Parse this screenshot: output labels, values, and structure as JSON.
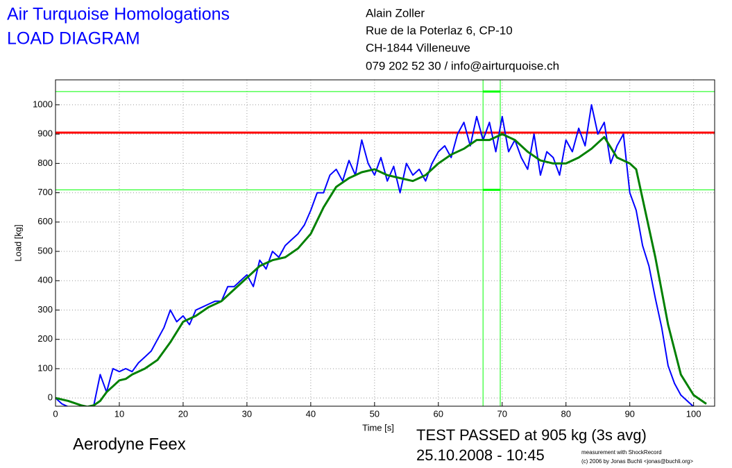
{
  "chart_data": {
    "type": "line",
    "title": "Air Turquoise Homologations",
    "subtitle": "LOAD DIAGRAM",
    "address": [
      "Alain Zoller",
      "Rue de la Poterlaz 6, CP-10",
      "CH-1844 Villeneuve",
      "079 202 52 30 / info@airturquoise.ch"
    ],
    "glider": "Aerodyne Feex",
    "result": [
      "TEST PASSED at 905 kg (3s avg)",
      "25.10.2008 - 10:45"
    ],
    "credits": [
      "measurement with ShockRecord",
      "(c) 2006 by Jonas Buchli <jonas@buchli.org>"
    ],
    "xlabel": "Time [s]",
    "ylabel": "Load [kg]",
    "xlim": [
      0,
      103.3
    ],
    "ylim": [
      -28,
      1085
    ],
    "xticks": [
      0,
      10,
      20,
      30,
      40,
      50,
      60,
      70,
      80,
      90,
      100
    ],
    "yticks": [
      0,
      100,
      200,
      300,
      400,
      500,
      600,
      700,
      800,
      900,
      1000
    ],
    "grid": true,
    "series": [
      {
        "color": "#0000ff",
        "x": [
          0,
          1,
          2,
          3,
          4,
          5,
          6,
          7,
          8,
          9,
          10,
          11,
          12,
          13,
          14,
          15,
          16,
          17,
          18,
          19,
          20,
          21,
          22,
          23,
          24,
          25,
          26,
          27,
          28,
          29,
          30,
          31,
          32,
          33,
          34,
          35,
          36,
          37,
          38,
          39,
          40,
          41,
          42,
          43,
          44,
          45,
          46,
          47,
          48,
          49,
          50,
          51,
          52,
          53,
          54,
          55,
          56,
          57,
          58,
          59,
          60,
          61,
          62,
          63,
          64,
          65,
          66,
          67,
          68,
          69,
          70,
          71,
          72,
          73,
          74,
          75,
          76,
          77,
          78,
          79,
          80,
          81,
          82,
          83,
          84,
          85,
          86,
          87,
          88,
          89,
          90,
          91,
          92,
          93,
          94,
          95,
          96,
          97,
          98,
          99,
          100
        ],
        "values": [
          0,
          -20,
          -30,
          -30,
          -30,
          -30,
          -25,
          80,
          20,
          100,
          90,
          100,
          90,
          120,
          140,
          160,
          200,
          240,
          300,
          260,
          280,
          250,
          300,
          310,
          320,
          330,
          330,
          380,
          380,
          400,
          420,
          380,
          470,
          440,
          500,
          480,
          520,
          540,
          560,
          590,
          640,
          700,
          700,
          760,
          780,
          740,
          810,
          760,
          880,
          800,
          760,
          820,
          740,
          790,
          700,
          800,
          760,
          780,
          740,
          800,
          840,
          860,
          820,
          900,
          940,
          860,
          960,
          880,
          940,
          840,
          960,
          840,
          880,
          820,
          780,
          900,
          760,
          840,
          820,
          760,
          880,
          840,
          920,
          860,
          1000,
          900,
          940,
          800,
          860,
          900,
          700,
          640,
          520,
          450,
          340,
          240,
          110,
          50,
          10,
          -10,
          -30
        ]
      },
      {
        "color": "#008000",
        "x": [
          0,
          2,
          4,
          5,
          6,
          7,
          8,
          9,
          10,
          11,
          12,
          14,
          16,
          18,
          20,
          22,
          24,
          26,
          28,
          30,
          32,
          34,
          36,
          38,
          40,
          42,
          44,
          46,
          48,
          50,
          52,
          54,
          56,
          58,
          60,
          62,
          64,
          66,
          68,
          70,
          72,
          74,
          76,
          78,
          80,
          82,
          84,
          86,
          88,
          90,
          91,
          92,
          94,
          96,
          98,
          100,
          102
        ],
        "values": [
          0,
          -10,
          -25,
          -30,
          -25,
          -10,
          20,
          40,
          60,
          65,
          80,
          100,
          130,
          190,
          260,
          280,
          310,
          330,
          370,
          410,
          450,
          470,
          480,
          510,
          560,
          650,
          720,
          750,
          770,
          780,
          760,
          750,
          740,
          760,
          800,
          830,
          850,
          880,
          880,
          900,
          880,
          840,
          810,
          800,
          800,
          820,
          850,
          890,
          820,
          800,
          780,
          680,
          480,
          250,
          80,
          10,
          -20
        ]
      }
    ],
    "hlines": [
      {
        "value": 905,
        "color": "#ff0000"
      },
      {
        "value": 1045,
        "color": "#00ff00"
      },
      {
        "value": 710,
        "color": "#00ff00"
      }
    ],
    "vlines": [
      {
        "value": 67,
        "color": "#00ff00"
      },
      {
        "value": 69.7,
        "color": "#00ff00"
      }
    ]
  }
}
